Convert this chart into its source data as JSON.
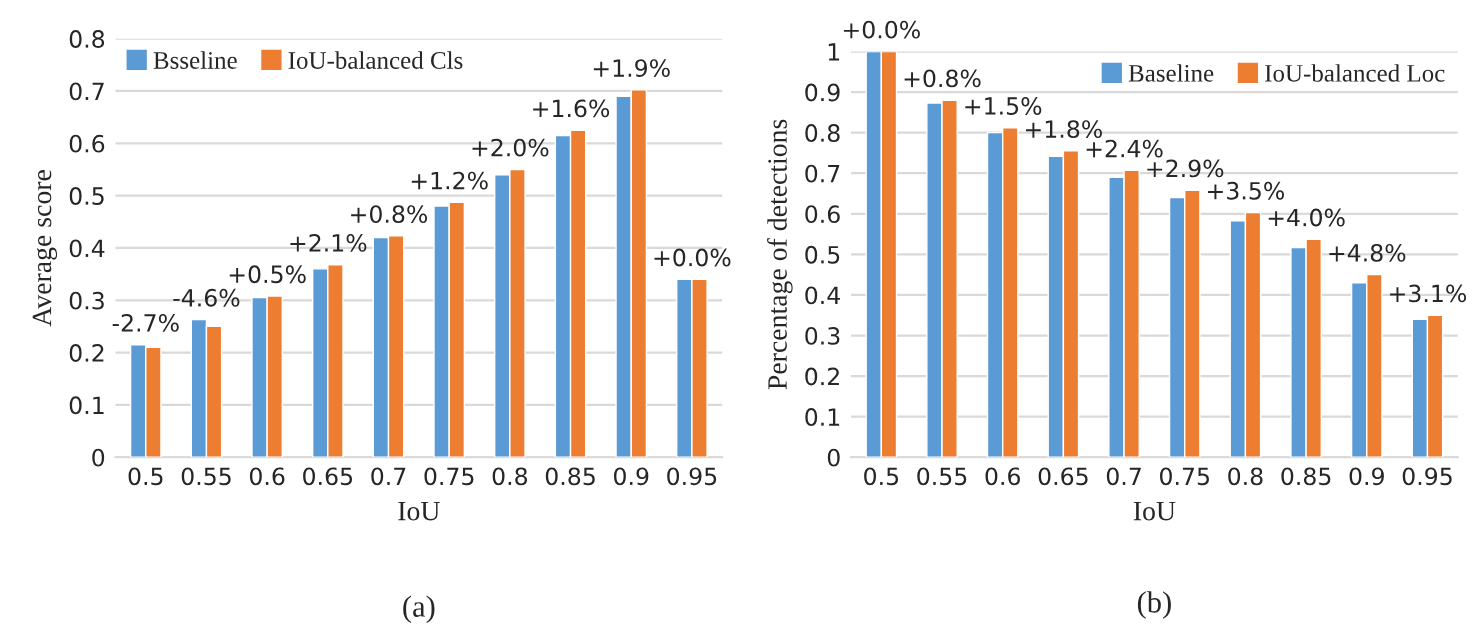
{
  "chart_data": [
    {
      "type": "bar",
      "xlabel": "IoU",
      "ylabel": "Average score",
      "categories": [
        "0.5",
        "0.55",
        "0.6",
        "0.65",
        "0.7",
        "0.75",
        "0.8",
        "0.85",
        "0.9",
        "0.95"
      ],
      "series": [
        {
          "name": "Bsseline",
          "color": "#5b9bd5",
          "values": [
            0.215,
            0.263,
            0.305,
            0.36,
            0.42,
            0.48,
            0.54,
            0.615,
            0.69,
            0.34
          ]
        },
        {
          "name": "IoU-balanced Cls",
          "color": "#ed7d31",
          "values": [
            0.21,
            0.25,
            0.308,
            0.368,
            0.423,
            0.487,
            0.55,
            0.625,
            0.702,
            0.34
          ]
        }
      ],
      "ylim": [
        0,
        0.8
      ],
      "yticks": [
        0,
        0.1,
        0.2,
        0.3,
        0.4,
        0.5,
        0.6,
        0.7,
        0.8
      ],
      "grid": "y",
      "legend": "top left",
      "annotations": [
        {
          "text": "-2.7%",
          "x": "0.5",
          "y": 0.215
        },
        {
          "text": "-4.6%",
          "x": "0.55",
          "y": 0.263
        },
        {
          "text": "+0.5%",
          "x": "0.6",
          "y": 0.308
        },
        {
          "text": "+2.1%",
          "x": "0.65",
          "y": 0.368
        },
        {
          "text": "+0.8%",
          "x": "0.7",
          "y": 0.423
        },
        {
          "text": "+1.2%",
          "x": "0.75",
          "y": 0.487
        },
        {
          "text": "+2.0%",
          "x": "0.8",
          "y": 0.55
        },
        {
          "text": "+1.6%",
          "x": "0.85",
          "y": 0.625
        },
        {
          "text": "+1.9%",
          "x": "0.9",
          "y": 0.702
        },
        {
          "text": "+0.0%",
          "x": "0.95",
          "y": 0.34
        },
        "(a)"
      ]
    },
    {
      "type": "bar",
      "xlabel": "IoU",
      "ylabel": "Percentage of detections",
      "categories": [
        "0.5",
        "0.55",
        "0.6",
        "0.65",
        "0.7",
        "0.75",
        "0.8",
        "0.85",
        "0.9",
        "0.95"
      ],
      "series": [
        {
          "name": "Baseline",
          "color": "#5b9bd5",
          "values": [
            1.0,
            0.873,
            0.8,
            0.742,
            0.69,
            0.64,
            0.583,
            0.517,
            0.43,
            0.34
          ]
        },
        {
          "name": "IoU-balanced Loc",
          "color": "#ed7d31",
          "values": [
            1.0,
            0.88,
            0.812,
            0.755,
            0.707,
            0.658,
            0.603,
            0.537,
            0.45,
            0.35
          ]
        }
      ],
      "ylim": [
        0,
        1
      ],
      "yticks": [
        0,
        0.1,
        0.2,
        0.3,
        0.4,
        0.5,
        0.6,
        0.7,
        0.8,
        0.9,
        1
      ],
      "grid": "y",
      "legend": "top right",
      "annotations": [
        {
          "text": "+0.0%",
          "x": "0.5",
          "y": 1.0
        },
        {
          "text": "+0.8%",
          "x": "0.55",
          "y": 0.88
        },
        {
          "text": "+1.5%",
          "x": "0.6",
          "y": 0.812
        },
        {
          "text": "+1.8%",
          "x": "0.65",
          "y": 0.755
        },
        {
          "text": "+2.4%",
          "x": "0.7",
          "y": 0.707
        },
        {
          "text": "+2.9%",
          "x": "0.75",
          "y": 0.658
        },
        {
          "text": "+3.5%",
          "x": "0.8",
          "y": 0.603
        },
        {
          "text": "+4.0%",
          "x": "0.85",
          "y": 0.537
        },
        {
          "text": "+4.8%",
          "x": "0.9",
          "y": 0.45
        },
        {
          "text": "+3.1%",
          "x": "0.95",
          "y": 0.35
        },
        "(b)"
      ]
    }
  ]
}
